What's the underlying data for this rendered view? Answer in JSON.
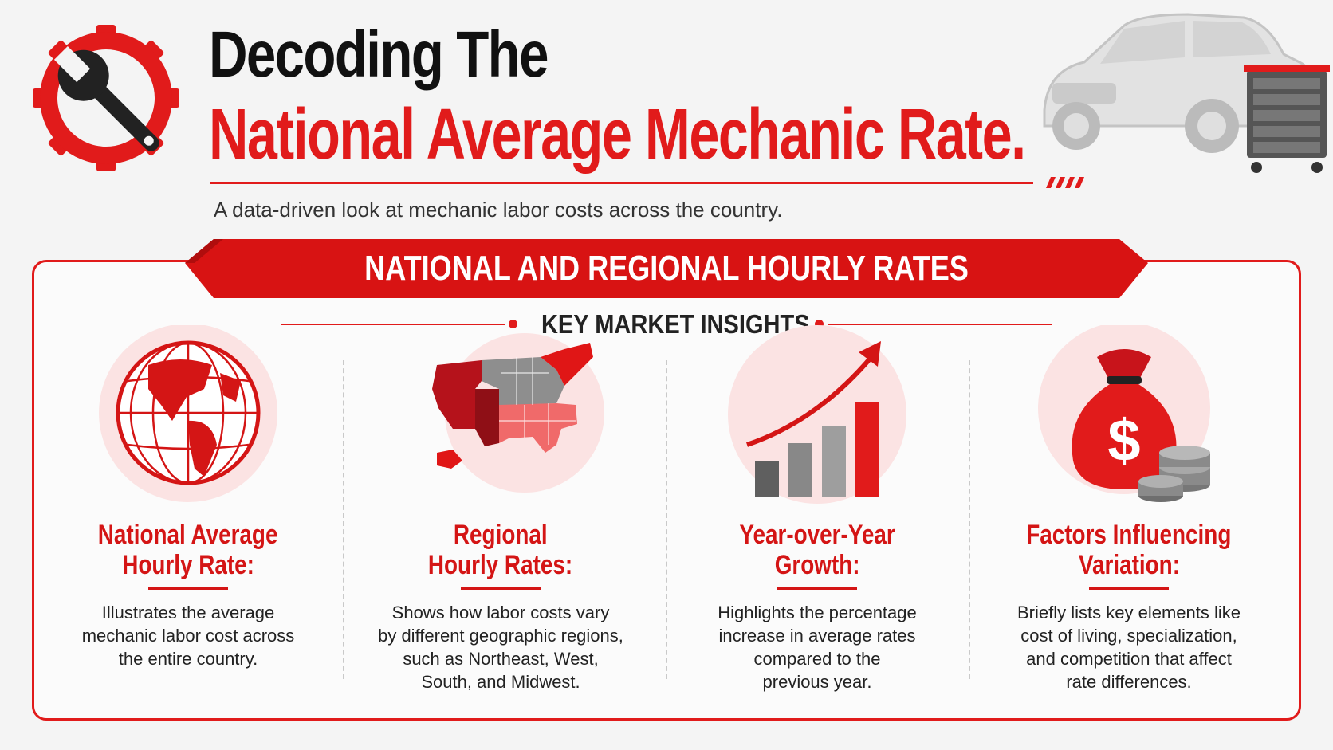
{
  "header": {
    "title_line1": "Decoding The",
    "title_line2": "National Average Mechanic Rate.",
    "subtitle": "A data-driven look at mechanic labor costs across the country."
  },
  "panel": {
    "banner": "NATIONAL  AND REGIONAL HOURLY RATES",
    "section_label": "KEY MARKET INSIGHTS"
  },
  "columns": [
    {
      "icon": "globe-icon",
      "title_line1": "National Average",
      "title_line2": "Hourly Rate:",
      "desc_lines": [
        "Illustrates the average",
        "mechanic labor cost across",
        "the entire country."
      ]
    },
    {
      "icon": "us-map-icon",
      "title_line1": "Regional",
      "title_line2": "Hourly Rates:",
      "desc_lines": [
        "Shows how labor costs vary",
        "by different geographic regions,",
        "such as Northeast, West,",
        "South, and Midwest."
      ]
    },
    {
      "icon": "growth-chart-icon",
      "title_line1": "Year-over-Year",
      "title_line2": "Growth:",
      "desc_lines": [
        "Highlights the percentage",
        "increase in average rates",
        "compared to the",
        "previous year."
      ]
    },
    {
      "icon": "money-bag-icon",
      "title_line1": "Factors Influencing",
      "title_line2": "Variation:",
      "desc_lines": [
        "Briefly lists key elements like",
        "cost of living, specialization,",
        "and competition that affect",
        "rate differences."
      ]
    }
  ],
  "colors": {
    "accent": "#e11b1b",
    "dark": "#111111",
    "grey": "#8a8a8a"
  }
}
